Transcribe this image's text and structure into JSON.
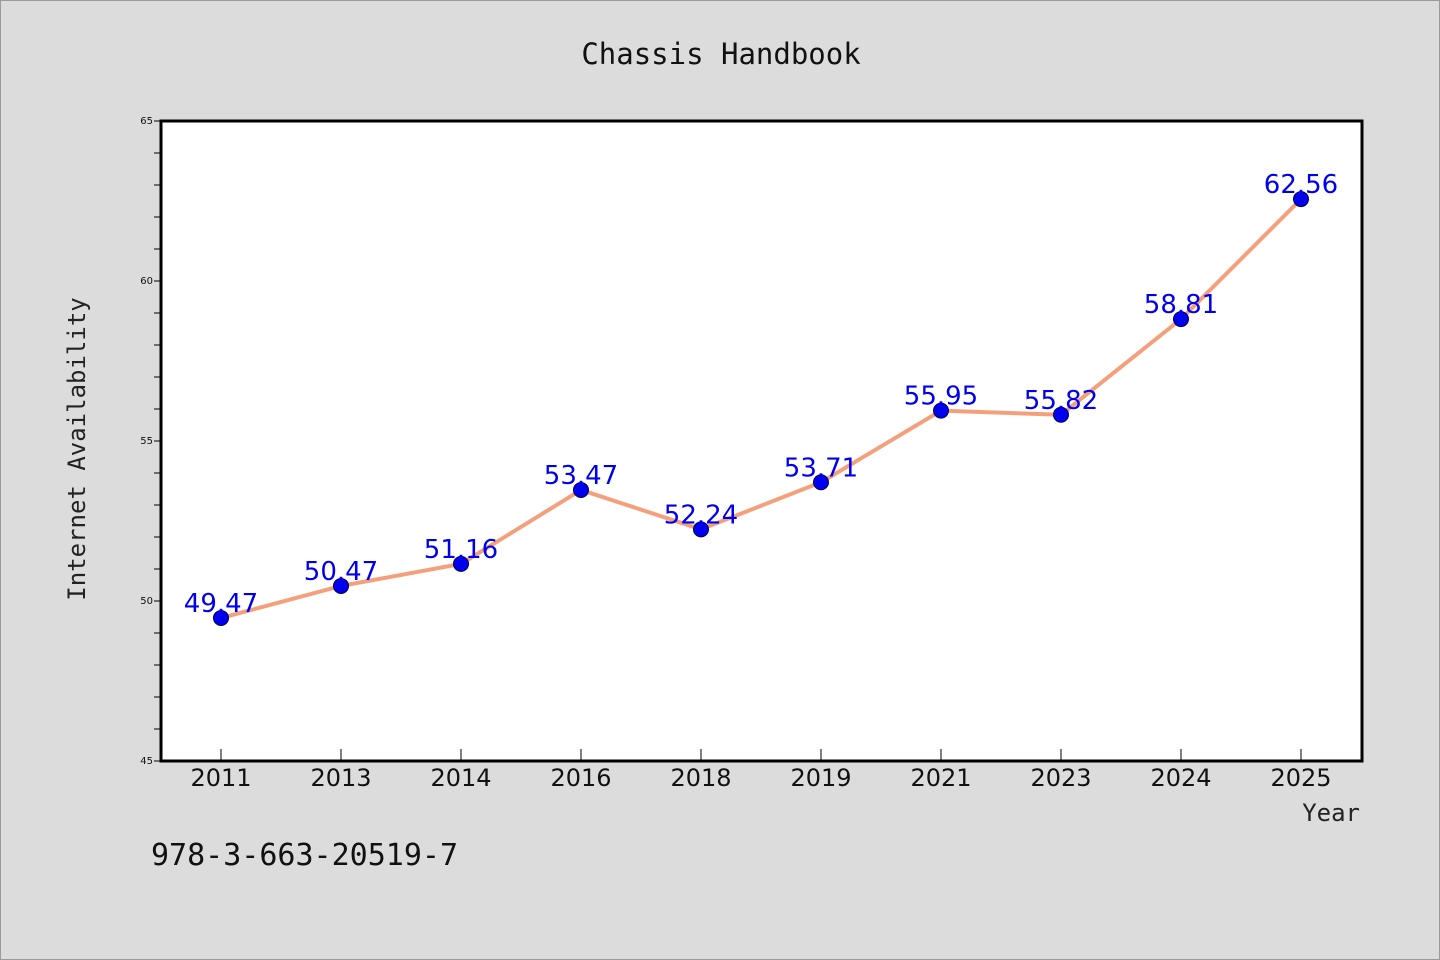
{
  "chart_data": {
    "type": "line",
    "title": "Chassis Handbook",
    "xlabel": "Year",
    "ylabel": "Internet Availability",
    "categories": [
      "2011",
      "2013",
      "2014",
      "2016",
      "2018",
      "2019",
      "2021",
      "2023",
      "2024",
      "2025"
    ],
    "series": [
      {
        "values": [
          49.47,
          50.47,
          51.16,
          53.47,
          52.24,
          53.71,
          55.95,
          55.82,
          58.81,
          62.56
        ],
        "line_color": "#f4a07c",
        "marker_color": "#0000ee",
        "label_color": "#0000ee"
      }
    ],
    "ylim": [
      45,
      65
    ],
    "yticks": [
      45,
      50,
      55,
      60,
      65
    ],
    "grid": false,
    "legend": "none"
  },
  "footer_text": "978-3-663-20519-7"
}
